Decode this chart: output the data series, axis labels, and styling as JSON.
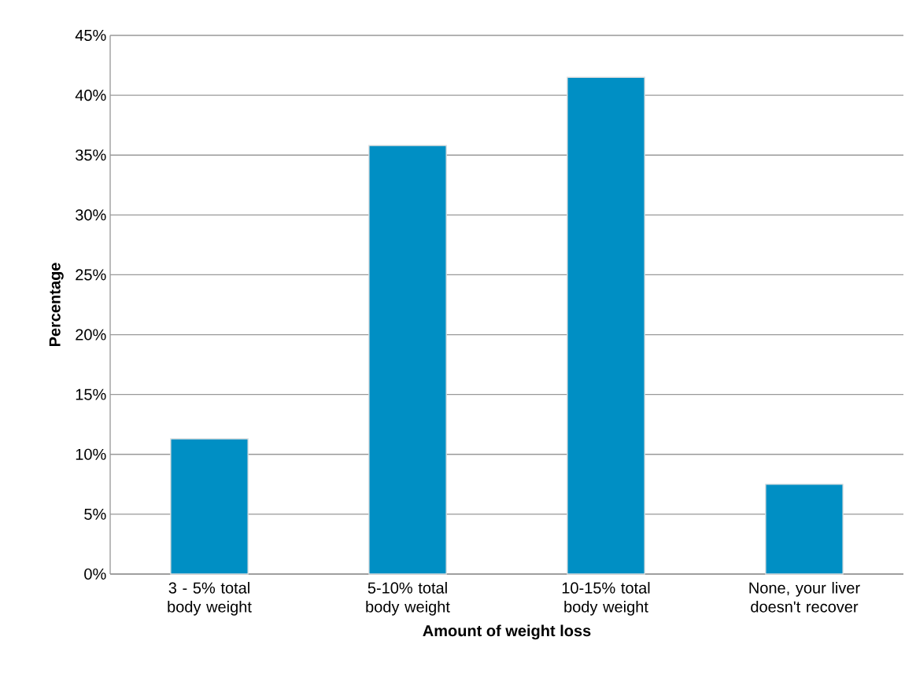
{
  "chart_data": {
    "type": "bar",
    "xlabel": "Amount of weight loss",
    "ylabel": "Percentage",
    "categories": [
      "3 - 5% total body weight",
      "5-10% total body weight",
      "10-15% total body weight",
      "None, your liver doesn't recover"
    ],
    "values": [
      11.3,
      35.8,
      41.5,
      7.5
    ],
    "color": "#008fc4",
    "ylim": [
      0,
      45
    ],
    "yticks": [
      {
        "value": 0,
        "label": "0%"
      },
      {
        "value": 5,
        "label": "5%"
      },
      {
        "value": 10,
        "label": "10%"
      },
      {
        "value": 15,
        "label": "15%"
      },
      {
        "value": 20,
        "label": "20%"
      },
      {
        "value": 25,
        "label": "25%"
      },
      {
        "value": 30,
        "label": "30%"
      },
      {
        "value": 35,
        "label": "35%"
      },
      {
        "value": 40,
        "label": "40%"
      },
      {
        "value": 45,
        "label": "45%"
      }
    ],
    "grid": "y"
  }
}
